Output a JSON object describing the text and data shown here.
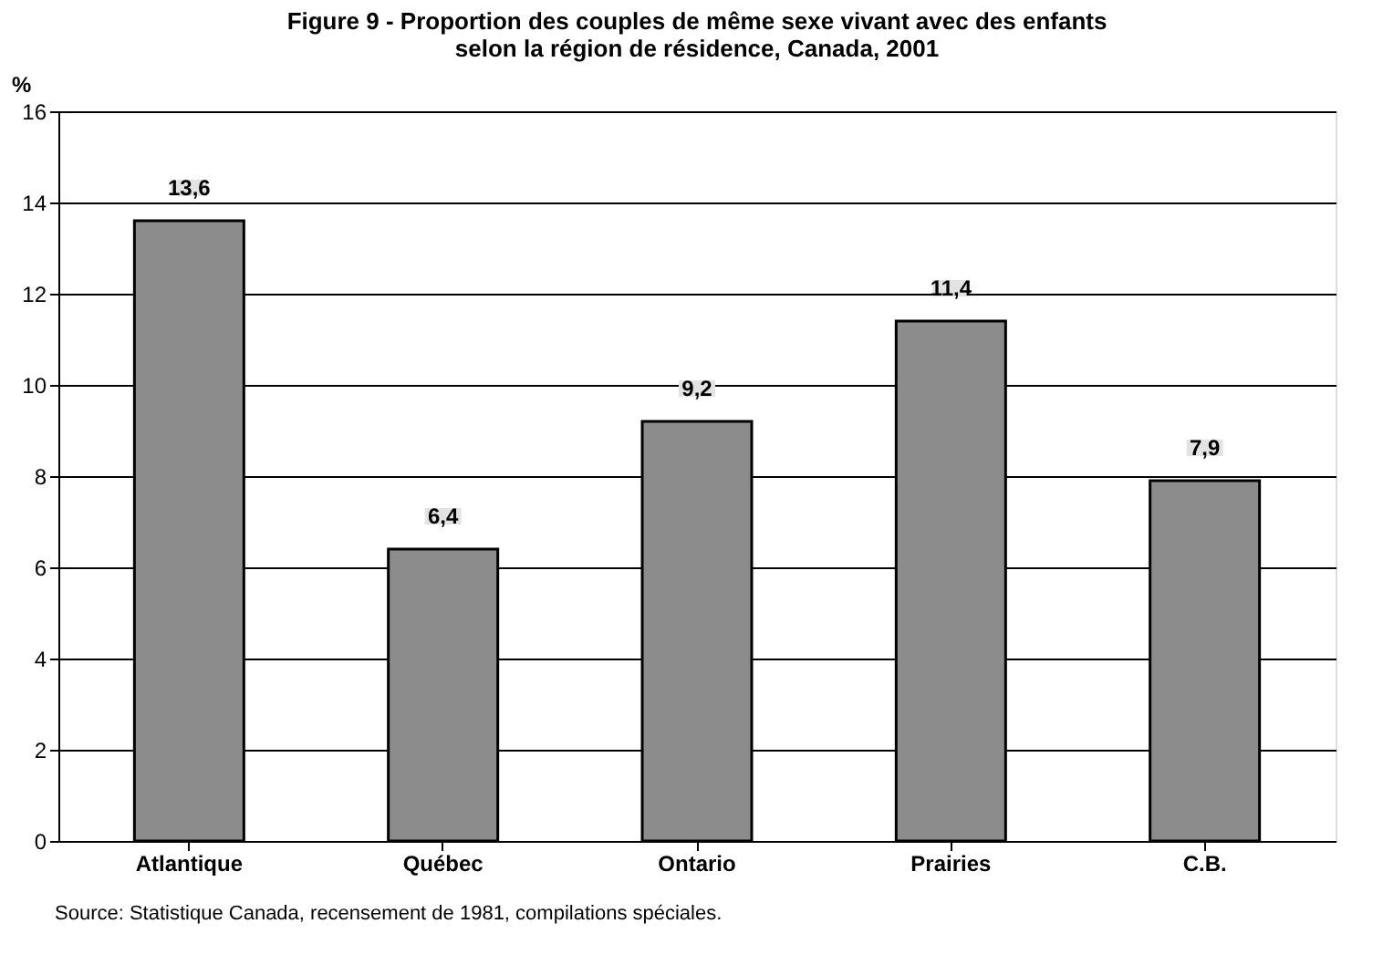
{
  "chart_data": {
    "type": "bar",
    "title": "Figure 9 - Proportion des couples de même sexe vivant avec des enfants\nselon la région de résidence, Canada, 2001",
    "ylabel": "%",
    "categories": [
      "Atlantique",
      "Québec",
      "Ontario",
      "Prairies",
      "C.B."
    ],
    "values": [
      13.6,
      6.4,
      9.2,
      11.4,
      7.9
    ],
    "value_labels": [
      "13,6",
      "6,4",
      "9,2",
      "11,4",
      "7,9"
    ],
    "color": "#8c8c8c",
    "ylim": [
      0,
      16
    ],
    "yticks": [
      0,
      2,
      4,
      6,
      8,
      10,
      12,
      14,
      16
    ],
    "grid": "y",
    "annotations": [
      "Source: Statistique Canada, recensement de 1981, compilations spéciales."
    ]
  }
}
